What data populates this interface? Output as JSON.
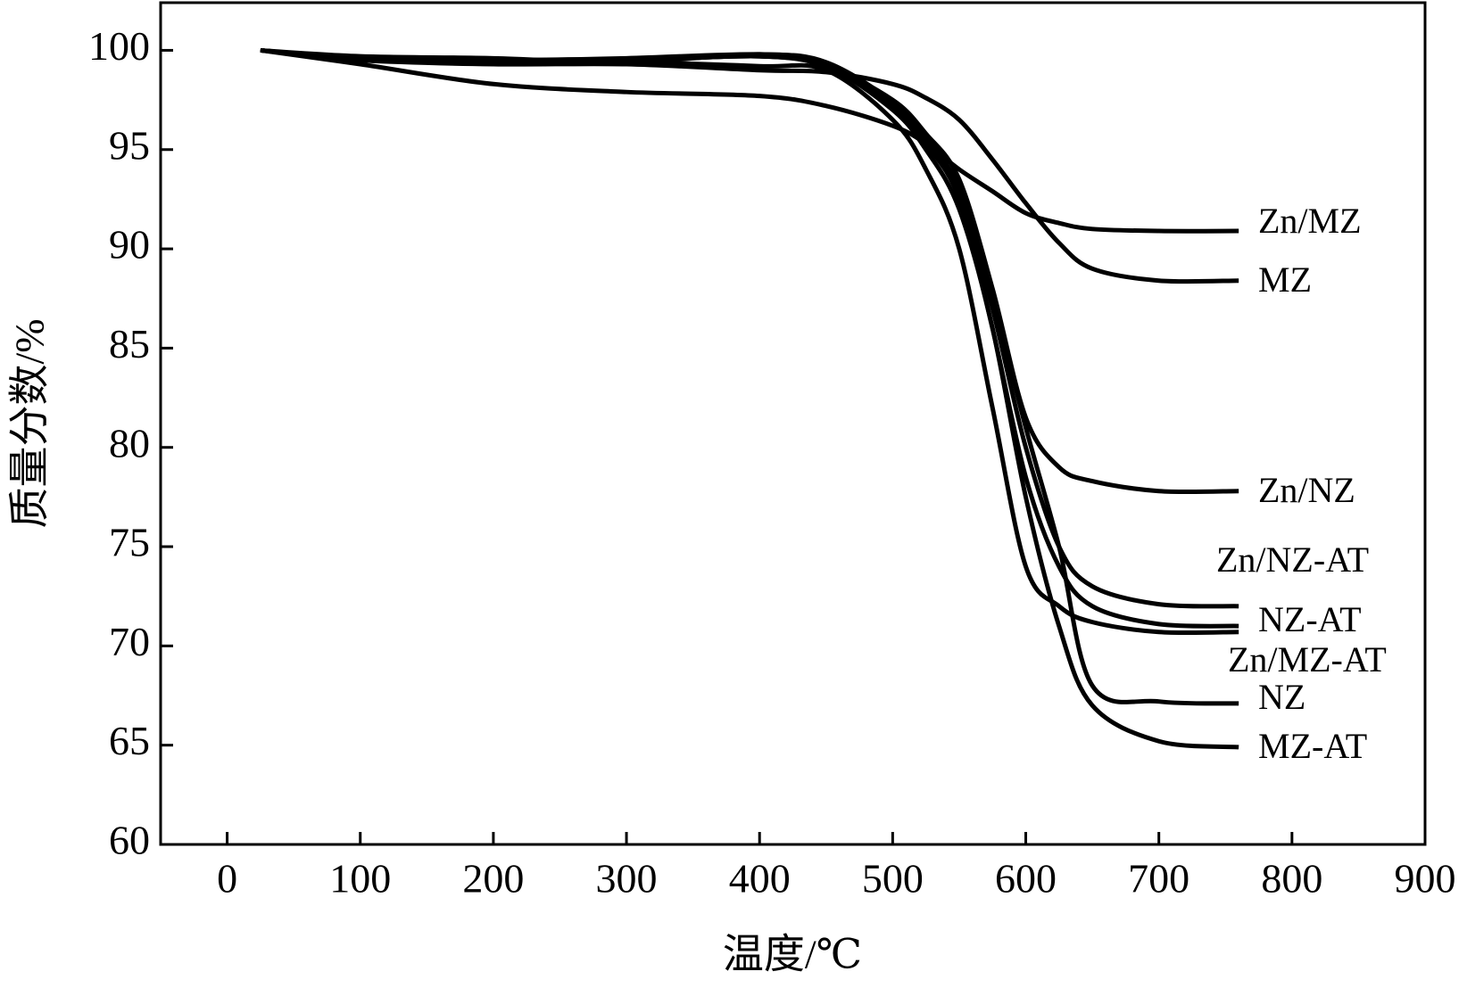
{
  "chart_data": {
    "type": "line",
    "x_label": "温度/℃",
    "y_label": "质量分数/%",
    "x": [
      25,
      100,
      200,
      300,
      400,
      450,
      500,
      525,
      550,
      575,
      600,
      625,
      650,
      700,
      760
    ],
    "series": [
      {
        "name": "Zn/MZ",
        "color": "#000000",
        "values": [
          100,
          99.3,
          98.3,
          97.9,
          97.7,
          97.2,
          96.2,
          95.3,
          94.0,
          92.9,
          91.8,
          91.3,
          91.0,
          90.9,
          90.9
        ]
      },
      {
        "name": "MZ",
        "color": "#000000",
        "values": [
          100,
          99.5,
          99.3,
          99.3,
          99.0,
          98.9,
          98.3,
          97.6,
          96.5,
          94.5,
          92.3,
          90.3,
          89.0,
          88.4,
          88.4
        ]
      },
      {
        "name": "Zn/NZ",
        "color": "#000000",
        "values": [
          100,
          99.6,
          99.5,
          99.5,
          99.7,
          99.2,
          97.5,
          95.8,
          93.5,
          88.0,
          81.5,
          79.0,
          78.3,
          77.8,
          77.8
        ]
      },
      {
        "name": "Zn/NZ-AT",
        "color": "#000000",
        "values": [
          100,
          99.6,
          99.5,
          99.5,
          99.7,
          99.2,
          97.3,
          95.5,
          93.0,
          87.0,
          80.0,
          75.0,
          73.0,
          72.1,
          72.0
        ]
      },
      {
        "name": "NZ-AT",
        "color": "#000000",
        "values": [
          100,
          99.7,
          99.6,
          99.4,
          99.8,
          99.3,
          97.2,
          95.3,
          92.5,
          86.0,
          78.5,
          74.0,
          72.0,
          71.1,
          71.0
        ]
      },
      {
        "name": "Zn/MZ-AT",
        "color": "#000000",
        "values": [
          100,
          99.5,
          99.4,
          99.4,
          99.2,
          99.0,
          96.5,
          94.0,
          90.0,
          82.0,
          74.0,
          72.0,
          71.2,
          70.7,
          70.7
        ]
      },
      {
        "name": "NZ",
        "color": "#000000",
        "values": [
          100,
          99.6,
          99.5,
          99.6,
          99.8,
          99.4,
          97.4,
          95.6,
          93.0,
          87.5,
          81.0,
          75.0,
          68.0,
          67.2,
          67.1
        ]
      },
      {
        "name": "MZ-AT",
        "color": "#000000",
        "values": [
          100,
          99.6,
          99.5,
          99.5,
          99.7,
          99.2,
          97.0,
          95.0,
          92.0,
          86.0,
          77.5,
          71.0,
          67.0,
          65.2,
          64.9
        ]
      }
    ],
    "xlim": [
      -50,
      900
    ],
    "xticks": [
      0,
      100,
      200,
      300,
      400,
      500,
      600,
      700,
      800,
      900
    ],
    "ylim": [
      60,
      102.4
    ],
    "yticks": [
      60,
      65,
      70,
      75,
      80,
      85,
      90,
      95,
      100
    ],
    "grid": false
  }
}
